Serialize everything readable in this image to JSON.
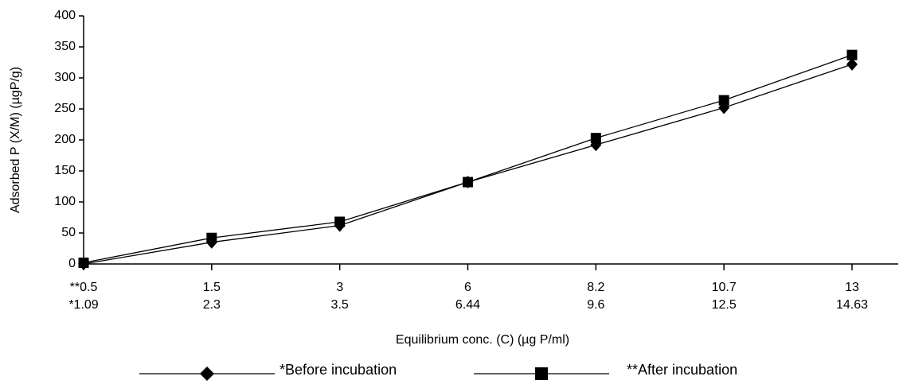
{
  "chart_data": {
    "type": "line",
    "x_label": "Equilibrium conc. (C) (µg P/ml)",
    "y_label": "Adsorbed P (X/M) (µgP/g)",
    "categories": [
      [
        "**0.5",
        "*1.09"
      ],
      [
        "1.5",
        "2.3"
      ],
      [
        "3",
        "3.5"
      ],
      [
        "6",
        "6.44"
      ],
      [
        "8.2",
        "9.6"
      ],
      [
        "10.7",
        "12.5"
      ],
      [
        "13",
        "14.63"
      ]
    ],
    "series": [
      {
        "name": "*Before incubation",
        "color": "#000000",
        "marker": "diamond",
        "values": [
          0,
          35,
          62,
          132,
          192,
          252,
          322
        ]
      },
      {
        "name": "**After incubation",
        "color": "#000000",
        "marker": "square",
        "values": [
          2,
          42,
          68,
          132,
          203,
          264,
          337
        ]
      }
    ],
    "ylim": [
      0,
      400
    ],
    "yticks": [
      0,
      50,
      100,
      150,
      200,
      250,
      300,
      350,
      400
    ],
    "grid": false
  }
}
